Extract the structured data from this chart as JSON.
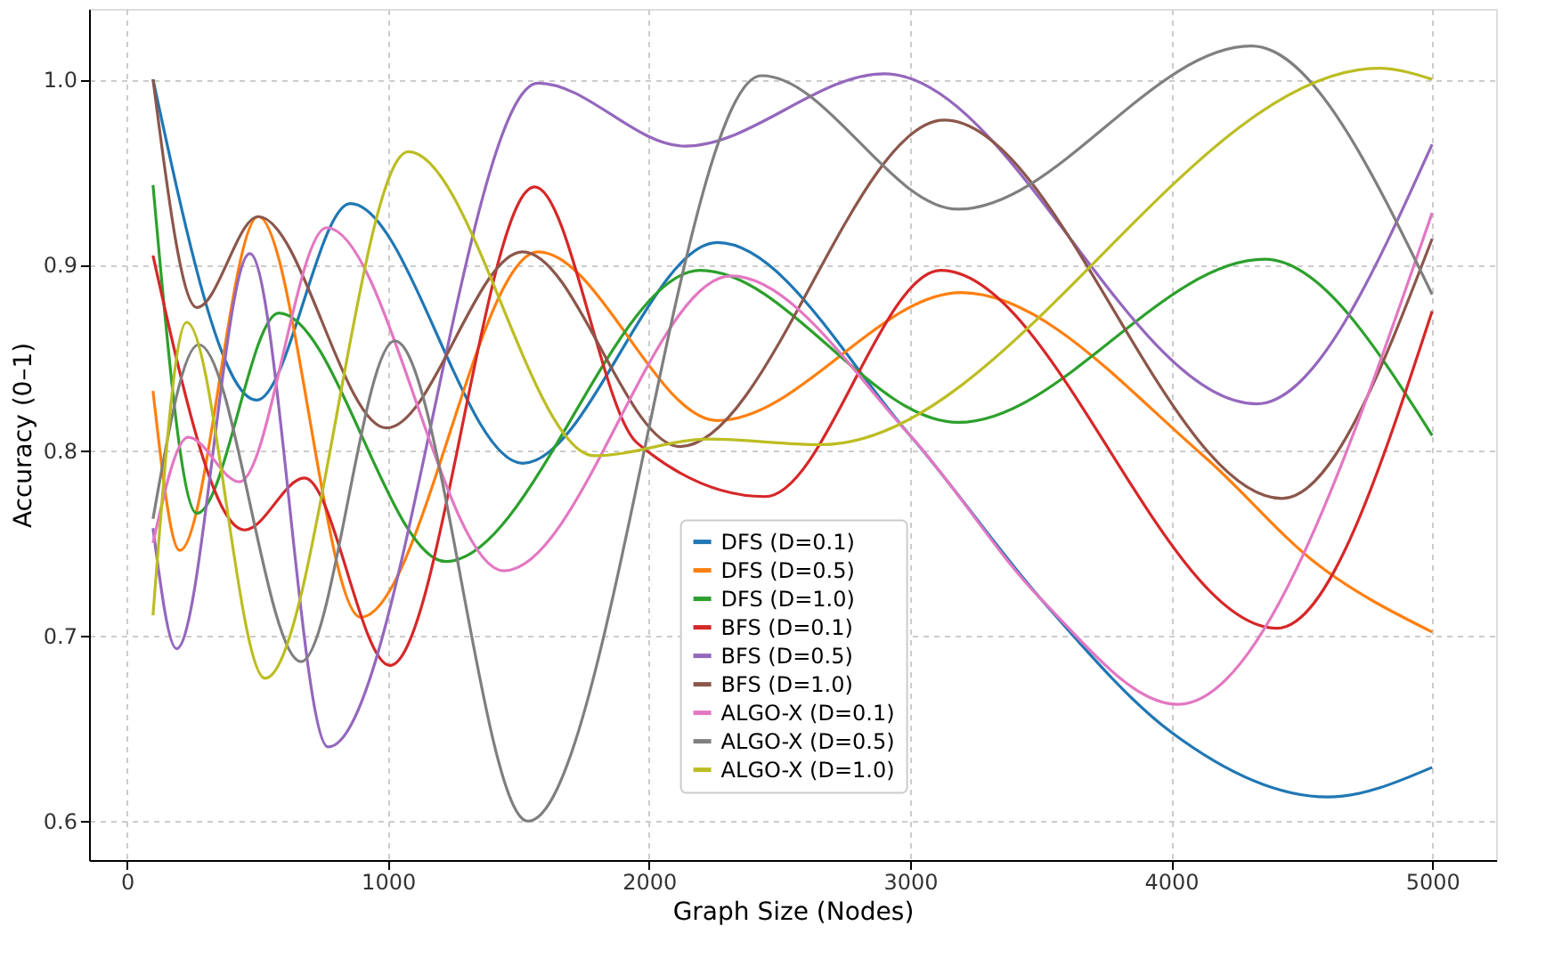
{
  "chart_data": {
    "type": "line",
    "xlabel": "Graph Size (Nodes)",
    "ylabel": "Accuracy (0–1)",
    "xlim": [
      -145,
      5245
    ],
    "xticks": [
      0,
      1000,
      2000,
      3000,
      4000,
      5000
    ],
    "ylim": [
      0.579,
      1.038
    ],
    "yticks": [
      0.6,
      0.7,
      0.8,
      0.9,
      {
        "value": 1.0,
        "label": "1.0"
      }
    ],
    "grid": true,
    "legend": "bottom",
    "line_style": "solid",
    "marker": "none",
    "series": [
      {
        "name": "DFS (D=0.1)",
        "color": "#1f77b4",
        "x": [
          100,
          497,
          856,
          1516,
          2262,
          3000,
          3500,
          4000,
          4600,
          5000
        ],
        "values": [
          1.0,
          0.827,
          0.933,
          0.793,
          0.912,
          0.808,
          0.72,
          0.648,
          0.613,
          0.629
        ]
      },
      {
        "name": "DFS (D=0.5)",
        "color": "#ff7f0e",
        "x": [
          100,
          203,
          503,
          895,
          1575,
          2262,
          3196,
          4124,
          4556,
          5000
        ],
        "values": [
          0.832,
          0.746,
          0.926,
          0.71,
          0.907,
          0.816,
          0.885,
          0.797,
          0.739,
          0.702
        ]
      },
      {
        "name": "DFS (D=1.0)",
        "color": "#2ca02c",
        "x": [
          100,
          268,
          582,
          1222,
          2196,
          3183,
          4359,
          5000
        ],
        "values": [
          0.943,
          0.766,
          0.874,
          0.74,
          0.897,
          0.815,
          0.903,
          0.808
        ]
      },
      {
        "name": "BFS (D=0.1)",
        "color": "#d62728",
        "x": [
          100,
          451,
          680,
          1007,
          1562,
          1954,
          2444,
          3118,
          4405,
          5000
        ],
        "values": [
          0.905,
          0.757,
          0.785,
          0.684,
          0.942,
          0.804,
          0.775,
          0.897,
          0.704,
          0.875
        ]
      },
      {
        "name": "BFS (D=0.5)",
        "color": "#9467bd",
        "x": [
          100,
          190,
          471,
          771,
          1575,
          2137,
          2902,
          4327,
          5000
        ],
        "values": [
          0.758,
          0.693,
          0.906,
          0.64,
          0.998,
          0.964,
          1.003,
          0.825,
          0.965
        ]
      },
      {
        "name": "BFS (D=1.0)",
        "color": "#8c564b",
        "x": [
          100,
          268,
          503,
          994,
          1516,
          2118,
          3131,
          4425,
          5000
        ],
        "values": [
          1.0,
          0.877,
          0.926,
          0.812,
          0.907,
          0.802,
          0.978,
          0.774,
          0.914
        ]
      },
      {
        "name": "ALGO-X (D=0.1)",
        "color": "#e377c2",
        "x": [
          100,
          235,
          431,
          765,
          1444,
          2314,
          3000,
          3500,
          4026,
          5000
        ],
        "values": [
          0.75,
          0.807,
          0.783,
          0.92,
          0.735,
          0.894,
          0.808,
          0.72,
          0.663,
          0.928
        ]
      },
      {
        "name": "ALGO-X (D=0.5)",
        "color": "#7f7f7f",
        "x": [
          100,
          275,
          667,
          1026,
          1536,
          2431,
          3183,
          4307,
          5000
        ],
        "values": [
          0.763,
          0.857,
          0.686,
          0.859,
          0.6,
          1.002,
          0.93,
          1.018,
          0.884
        ]
      },
      {
        "name": "ALGO-X (D=1.0)",
        "color": "#bcbd22",
        "x": [
          100,
          229,
          529,
          1078,
          1791,
          2229,
          2660,
          4797,
          5000
        ],
        "values": [
          0.711,
          0.869,
          0.677,
          0.961,
          0.797,
          0.806,
          0.803,
          1.006,
          1.0
        ]
      }
    ]
  }
}
